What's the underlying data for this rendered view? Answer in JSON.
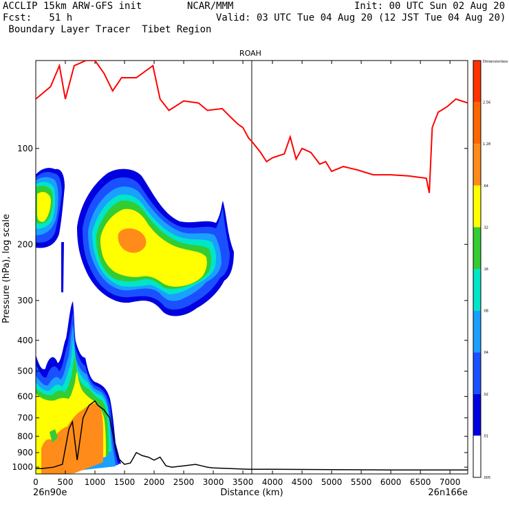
{
  "header": {
    "left_line1": "ACCLIP 15km ARW-GFS init",
    "left_line2": "Fcst:   51 h",
    "left_line3": " Boundary Layer Tracer  Tibet Region",
    "center_line1": "NCAR/MMM",
    "right_line1": "Init: 00 UTC Sun 02 Aug 20",
    "right_line2": "Valid: 03 UTC Tue 04 Aug 20 (12 JST Tue 04 Aug 20)"
  },
  "chart_data": {
    "type": "heatmap",
    "subtype": "vertical cross-section",
    "title": "ROAH",
    "xlabel": "Distance (km)",
    "ylabel": "Pressure (hPa), log scale",
    "x_start_label": "26n90e",
    "x_end_label": "26n166e",
    "xlim": [
      0,
      7300
    ],
    "ylim": [
      1050,
      53
    ],
    "x_ticks": [
      0,
      500,
      1000,
      1500,
      2000,
      2500,
      3000,
      3500,
      4000,
      4500,
      5000,
      5500,
      6000,
      6500,
      7000
    ],
    "y_ticks": [
      100,
      200,
      300,
      400,
      500,
      600,
      700,
      800,
      900,
      1000
    ],
    "marker_line_x_km": 3650,
    "colorbar": {
      "levels": [
        "Dimensionless",
        "2.56",
        "1.28",
        ".64",
        ".32",
        ".16",
        ".08",
        ".04",
        ".02",
        ".01",
        ".005"
      ],
      "colors": [
        "#ff3300",
        "#ff6600",
        "#ff8c1a",
        "#ffff00",
        "#33cc33",
        "#00e6c8",
        "#1aa0ff",
        "#1a50ff",
        "#0000e0",
        "#ffffff"
      ]
    },
    "series": [
      {
        "name": "tropopause (red line)",
        "color": "#ff0000",
        "x": [
          0,
          250,
          400,
          500,
          650,
          850,
          1000,
          1150,
          1300,
          1400,
          1450,
          1700,
          1980,
          2100,
          2250,
          2500,
          2750,
          2900,
          3150,
          3300,
          3420,
          3500,
          3600,
          3650,
          3800,
          3900,
          4000,
          4200,
          4300,
          4400,
          4500,
          4650,
          4800,
          4900,
          5000,
          5200,
          5450,
          5700,
          6000,
          6300,
          6600,
          6650,
          6700,
          6800,
          6950,
          7100,
          7300
        ],
        "y": [
          70,
          64,
          55,
          70,
          55,
          53,
          53,
          58,
          66,
          62,
          60,
          60,
          55,
          70,
          76,
          71,
          72,
          76,
          75,
          80,
          84,
          86,
          93,
          95,
          103,
          110,
          107,
          104,
          92,
          108,
          100,
          103,
          112,
          110,
          118,
          114,
          117,
          121,
          121,
          122,
          124,
          138,
          86,
          77,
          74,
          70,
          72
        ]
      },
      {
        "name": "terrain (black line)",
        "color": "#000000",
        "x": [
          0,
          100,
          300,
          450,
          560,
          620,
          700,
          800,
          900,
          1000,
          1050,
          1150,
          1250,
          1300,
          1350,
          1400,
          1450,
          1500,
          1600,
          1700,
          1800,
          1900,
          2000,
          2100,
          2200,
          2300,
          2500,
          2700,
          2800,
          2900,
          3000,
          3300,
          3600,
          4000,
          5000,
          6000,
          7000,
          7300
        ],
        "y": [
          1010,
          1010,
          1000,
          980,
          760,
          720,
          950,
          700,
          640,
          620,
          640,
          660,
          700,
          780,
          880,
          940,
          960,
          980,
          970,
          900,
          920,
          930,
          950,
          930,
          990,
          1000,
          990,
          980,
          990,
          1000,
          1005,
          1010,
          1015,
          1015,
          1018,
          1020,
          1020,
          1020
        ]
      }
    ]
  }
}
